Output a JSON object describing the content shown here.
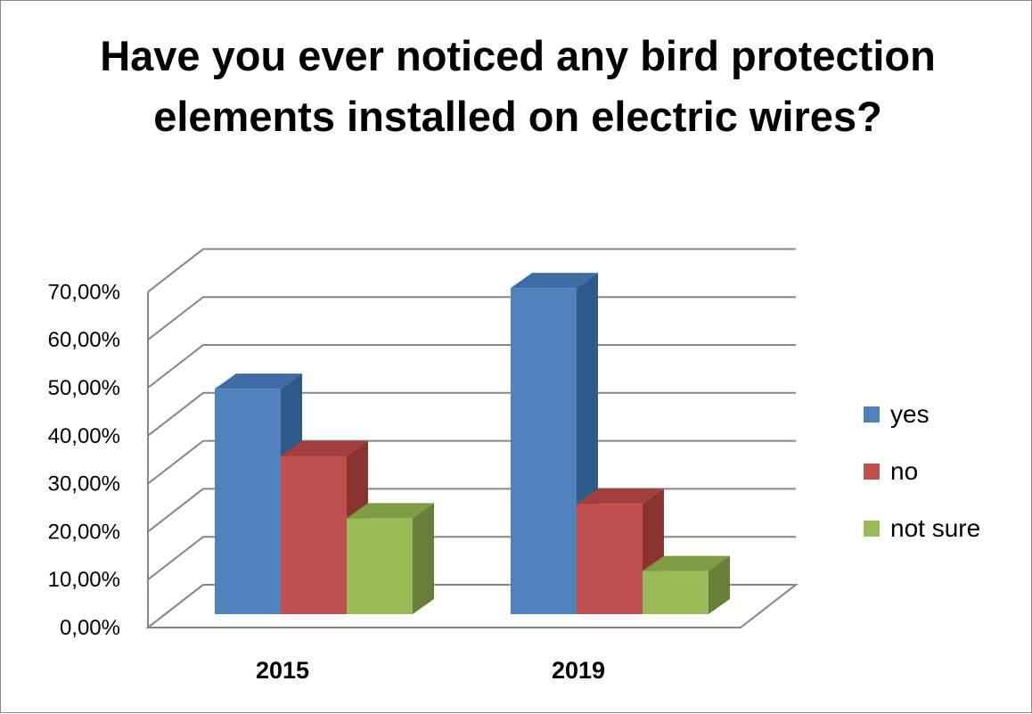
{
  "chart_data": {
    "type": "bar",
    "title": "Have you ever noticed any bird protection elements  installed on electric wires?",
    "categories": [
      "2015",
      "2019"
    ],
    "series": [
      {
        "name": "yes",
        "values": [
          0.47,
          0.68
        ],
        "color": "#4F81BD",
        "side_color": "#2E5A8A",
        "top_color": "#3E6DA6"
      },
      {
        "name": "no",
        "values": [
          0.33,
          0.23
        ],
        "color": "#C0504D",
        "side_color": "#8A3432",
        "top_color": "#A13F3C"
      },
      {
        "name": "not sure",
        "values": [
          0.2,
          0.09
        ],
        "color": "#9BBB59",
        "side_color": "#687F37",
        "top_color": "#7F9C45"
      }
    ],
    "yticks": [
      "0,00%",
      "10,00%",
      "20,00%",
      "30,00%",
      "40,00%",
      "50,00%",
      "60,00%",
      "70,00%"
    ],
    "ylim": [
      0,
      0.7
    ],
    "grid": true,
    "legend_position": "right"
  }
}
